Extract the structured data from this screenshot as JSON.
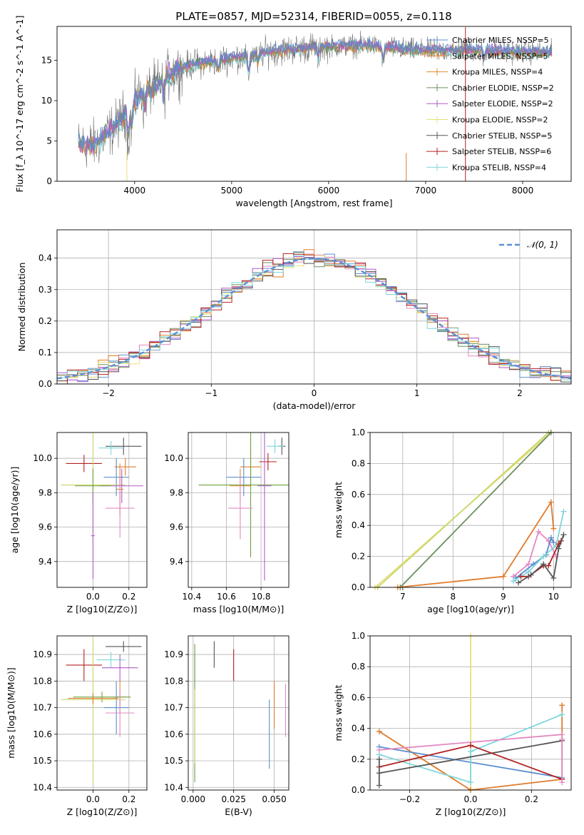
{
  "title": "PLATE=0857, MJD=52314, FIBERID=0055, z=0.118",
  "colors": {
    "chabrier_miles": "#5b8ecf",
    "salpeter_miles": "#e07b2a",
    "kroupa_miles": "#e08a2f",
    "chabrier_elodie": "#6a8f5e",
    "salpeter_elodie": "#b05ac7",
    "kroupa_elodie": "#e6e07a",
    "chabrier_stelib": "#555555",
    "salpeter_stelib": "#b22222",
    "kroupa_stelib": "#7fd6dc",
    "pink": "#e388c2",
    "yellowgreen": "#c9d66a",
    "green": "#6fa040",
    "gauss": "#5a8fd6"
  },
  "chart_data": [
    {
      "type": "line",
      "title": "PLATE=0857, MJD=52314, FIBERID=0055, z=0.118",
      "xlabel": "wavelength [Angstrom, rest frame]",
      "ylabel": "Flux [f_λ 10^-17 erg cm^-2 s^-1 A^-1]",
      "xlim": [
        3200,
        8500
      ],
      "ylim": [
        0,
        19.2
      ],
      "xticks": [
        "4000",
        "5000",
        "6000",
        "7000",
        "8000"
      ],
      "yticks": [
        "0",
        "5",
        "10",
        "15"
      ],
      "legend_position": "top-right",
      "series": [
        {
          "name": "Chabrier MILES, NSSP=5"
        },
        {
          "name": "Salpeter MILES, NSSP=5"
        },
        {
          "name": "Kroupa MILES, NSSP=4"
        },
        {
          "name": "Chabrier ELODIE, NSSP=2"
        },
        {
          "name": "Salpeter ELODIE, NSSP=2"
        },
        {
          "name": "Kroupa ELODIE, NSSP=2"
        },
        {
          "name": "Chabrier STELIB, NSSP=5"
        },
        {
          "name": "Salpeter STELIB, NSSP=6"
        },
        {
          "name": "Kroupa STELIB, NSSP=4"
        }
      ],
      "continuum": {
        "x": [
          3400,
          3600,
          3800,
          3950,
          4050,
          4200,
          4400,
          4600,
          4800,
          5000,
          5200,
          5400,
          5600,
          5800,
          6000,
          6200,
          6400,
          6600,
          6800,
          7000,
          7200,
          7400,
          7600,
          7800,
          8000,
          8200
        ],
        "y": [
          4.5,
          4.6,
          6.8,
          9.2,
          10.6,
          11.6,
          13.6,
          14.5,
          14.9,
          15.3,
          15.6,
          16.1,
          16.3,
          16.6,
          16.7,
          16.8,
          16.9,
          16.6,
          16.3,
          16.2,
          16.2,
          16.3,
          16.2,
          16.1,
          16.0,
          16.0
        ]
      }
    },
    {
      "type": "bar",
      "xlabel": "(data-model)/error",
      "ylabel": "Normed distribution",
      "xlim": [
        -2.5,
        2.5
      ],
      "ylim": [
        0,
        0.49
      ],
      "xticks": [
        "−2",
        "−1",
        "0",
        "1",
        "2"
      ],
      "yticks": [
        "0.0",
        "0.1",
        "0.2",
        "0.3",
        "0.4"
      ],
      "legend": "𝒩(0, 1)",
      "legend_position": "top-right",
      "bin_width": 0.1
    },
    {
      "type": "scatter",
      "xlabel": "Z [log10(Z/Z⊙)]",
      "ylabel": "age  [log10(age/yr)]",
      "xlim": [
        -0.2,
        0.3
      ],
      "ylim": [
        9.25,
        10.15
      ],
      "xticks": [
        "0.0",
        "0.2"
      ],
      "yticks": [
        "9.4",
        "9.6",
        "9.8",
        "10.0"
      ],
      "points": [
        {
          "x": 0.17,
          "y": 10.07,
          "xerr": 0.1,
          "yerr": 0.05,
          "c": "chabrier_stelib"
        },
        {
          "x": 0.1,
          "y": 10.06,
          "xerr": 0.07,
          "yerr": 0.04,
          "c": "kroupa_stelib"
        },
        {
          "x": -0.05,
          "y": 9.97,
          "xerr": 0.1,
          "yerr": 0.05,
          "c": "salpeter_stelib"
        },
        {
          "x": 0.18,
          "y": 9.95,
          "xerr": 0.06,
          "yerr": 0.05,
          "c": "salpeter_miles"
        },
        {
          "x": 0.13,
          "y": 9.89,
          "xerr": 0.07,
          "yerr": 0.11,
          "c": "chabrier_miles"
        },
        {
          "x": 0.0,
          "y": 9.845,
          "xerr": 0.18,
          "yerr": 0.34,
          "c": "yellowgreen"
        },
        {
          "x": 0.16,
          "y": 9.84,
          "xerr": 0.12,
          "yerr": 0.1,
          "c": "salpeter_elodie"
        },
        {
          "x": 0.15,
          "y": 9.82,
          "xerr": 0.02,
          "yerr": 0.15,
          "c": "kroupa_miles"
        },
        {
          "x": 0.0,
          "y": 9.84,
          "xerr": 0.1,
          "yerr": 0.1,
          "c": "green"
        },
        {
          "x": 0.15,
          "y": 9.71,
          "xerr": 0.08,
          "yerr": 0.17,
          "c": "pink"
        },
        {
          "x": 0.0,
          "y": 9.55,
          "xerr": 0.01,
          "yerr": 0.25,
          "c": "salpeter_elodie"
        }
      ]
    },
    {
      "type": "scatter",
      "xlabel": "mass [log10(M/M⊙)]",
      "xlim": [
        10.38,
        10.96
      ],
      "ylim": [
        9.25,
        10.15
      ],
      "xticks": [
        "10.4",
        "10.6",
        "10.8"
      ],
      "yticks": [
        "9.4",
        "9.6",
        "9.8",
        "10.0"
      ],
      "points": [
        {
          "x": 10.92,
          "y": 10.07,
          "xerr": 0.02,
          "yerr": 0.05,
          "c": "chabrier_stelib"
        },
        {
          "x": 10.88,
          "y": 10.07,
          "xerr": 0.05,
          "yerr": 0.04,
          "c": "kroupa_stelib"
        },
        {
          "x": 10.84,
          "y": 9.98,
          "xerr": 0.05,
          "yerr": 0.05,
          "c": "salpeter_stelib"
        },
        {
          "x": 10.74,
          "y": 9.95,
          "xerr": 0.06,
          "yerr": 0.12,
          "c": "salpeter_miles"
        },
        {
          "x": 10.7,
          "y": 9.89,
          "xerr": 0.1,
          "yerr": 0.11,
          "c": "chabrier_miles"
        },
        {
          "x": 10.74,
          "y": 9.845,
          "xerr": 0.3,
          "yerr": 0.42,
          "c": "green"
        },
        {
          "x": 10.82,
          "y": 9.84,
          "xerr": 0.04,
          "yerr": 0.55,
          "c": "salpeter_elodie"
        },
        {
          "x": 10.68,
          "y": 9.84,
          "xerr": 0.06,
          "yerr": 0.1,
          "c": "kroupa_miles"
        },
        {
          "x": 10.68,
          "y": 9.71,
          "xerr": 0.07,
          "yerr": 0.18,
          "c": "pink"
        }
      ]
    },
    {
      "type": "line",
      "xlabel": "age  [log10(age/yr)]",
      "ylabel": "mass weight",
      "xlim": [
        6.35,
        10.35
      ],
      "ylim": [
        0,
        1
      ],
      "xticks": [
        "7",
        "8",
        "9",
        "10"
      ],
      "yticks": [
        "0.0",
        "0.2",
        "0.4",
        "0.6",
        "0.8",
        "1.0"
      ],
      "series": [
        {
          "c": "kroupa_elodie",
          "x": [
            6.45,
            9.95
          ],
          "y": [
            0.0,
            1.0
          ]
        },
        {
          "c": "yellowgreen",
          "x": [
            6.5,
            9.9
          ],
          "y": [
            0.0,
            1.0
          ]
        },
        {
          "c": "chabrier_elodie",
          "x": [
            6.95,
            9.95
          ],
          "y": [
            0.0,
            1.0
          ]
        },
        {
          "c": "salpeter_miles",
          "x": [
            6.9,
            9.0,
            9.95,
            10.0
          ],
          "y": [
            0.0,
            0.07,
            0.55,
            0.38
          ]
        },
        {
          "c": "pink",
          "x": [
            9.2,
            9.5,
            9.7,
            9.9,
            10.05
          ],
          "y": [
            0.07,
            0.15,
            0.36,
            0.3,
            0.2
          ]
        },
        {
          "c": "chabrier_miles",
          "x": [
            9.25,
            9.6,
            9.85,
            9.95,
            10.0
          ],
          "y": [
            0.06,
            0.15,
            0.21,
            0.32,
            0.29
          ]
        },
        {
          "c": "kroupa_stelib",
          "x": [
            9.2,
            9.5,
            9.8,
            10.05,
            10.2
          ],
          "y": [
            0.04,
            0.1,
            0.2,
            0.27,
            0.49
          ]
        },
        {
          "c": "salpeter_stelib",
          "x": [
            9.35,
            9.5,
            9.8,
            9.9,
            10.1,
            10.15
          ],
          "y": [
            0.07,
            0.07,
            0.14,
            0.14,
            0.28,
            0.3
          ]
        },
        {
          "c": "chabrier_stelib",
          "x": [
            9.3,
            9.55,
            9.8,
            10.0,
            10.1,
            10.2
          ],
          "y": [
            0.03,
            0.08,
            0.15,
            0.06,
            0.25,
            0.34
          ]
        }
      ]
    },
    {
      "type": "scatter",
      "xlabel": "Z [log10(Z/Z⊙)]",
      "ylabel": "mass [log10(M/M⊙)]",
      "xlim": [
        -0.2,
        0.3
      ],
      "ylim": [
        10.39,
        10.97
      ],
      "xticks": [
        "0.0",
        "0.2"
      ],
      "yticks": [
        "10.4",
        "10.5",
        "10.6",
        "10.7",
        "10.8",
        "10.9"
      ],
      "points": [
        {
          "x": 0.17,
          "y": 10.93,
          "xerr": 0.1,
          "yerr": 0.02,
          "c": "chabrier_stelib"
        },
        {
          "x": -0.05,
          "y": 10.86,
          "xerr": 0.1,
          "yerr": 0.06,
          "c": "salpeter_stelib"
        },
        {
          "x": 0.1,
          "y": 10.88,
          "xerr": 0.08,
          "yerr": 0.03,
          "c": "kroupa_stelib"
        },
        {
          "x": 0.15,
          "y": 10.85,
          "xerr": 0.1,
          "yerr": 0.05,
          "c": "salpeter_elodie"
        },
        {
          "x": 0.13,
          "y": 10.7,
          "xerr": 0.07,
          "yerr": 0.1,
          "c": "chabrier_miles"
        },
        {
          "x": 0.15,
          "y": 10.74,
          "xerr": 0.03,
          "yerr": 0.06,
          "c": "kroupa_miles"
        },
        {
          "x": 0.05,
          "y": 10.74,
          "xerr": 0.16,
          "yerr": 0.02,
          "c": "green"
        },
        {
          "x": 0.0,
          "y": 10.73,
          "xerr": 0.18,
          "yerr": 0.32,
          "c": "yellowgreen"
        },
        {
          "x": 0.0,
          "y": 10.735,
          "xerr": 0.14,
          "yerr": 0.02,
          "c": "salpeter_miles"
        },
        {
          "x": 0.15,
          "y": 10.68,
          "xerr": 0.08,
          "yerr": 0.09,
          "c": "pink"
        }
      ]
    },
    {
      "type": "scatter",
      "xlabel": "E(B-V)",
      "xlim": [
        -0.003,
        0.059
      ],
      "ylim": [
        10.39,
        10.97
      ],
      "xticks": [
        "0.000",
        "0.025",
        "0.050"
      ],
      "yticks": [
        "10.4",
        "10.5",
        "10.6",
        "10.7",
        "10.8",
        "10.9"
      ],
      "points": [
        {
          "x": 0.013,
          "y": 10.9,
          "yerr": 0.05,
          "c": "chabrier_stelib"
        },
        {
          "x": 0.025,
          "y": 10.86,
          "yerr": 0.06,
          "c": "salpeter_stelib"
        },
        {
          "x": 0.001,
          "y": 10.85,
          "yerr": 0.05,
          "c": "kroupa_stelib"
        },
        {
          "x": 0.001,
          "y": 10.68,
          "yerr": 0.26,
          "c": "green"
        },
        {
          "x": 0.001,
          "y": 10.63,
          "yerr": 0.14,
          "c": "yellowgreen"
        },
        {
          "x": 0.05,
          "y": 10.71,
          "yerr": 0.09,
          "c": "salpeter_miles"
        },
        {
          "x": 0.047,
          "y": 10.6,
          "yerr": 0.13,
          "c": "chabrier_miles"
        },
        {
          "x": 0.057,
          "y": 10.69,
          "yerr": 0.1,
          "c": "pink"
        }
      ]
    },
    {
      "type": "line",
      "xlabel": "Z [log10(Z/Z⊙)]",
      "ylabel": "mass weight",
      "xlim": [
        -0.33,
        0.33
      ],
      "ylim": [
        0,
        1
      ],
      "xticks": [
        "−0.2",
        "0.0",
        "0.2"
      ],
      "yticks": [
        "0.0",
        "0.2",
        "0.4",
        "0.6",
        "0.8",
        "1.0"
      ],
      "series": [
        {
          "c": "kroupa_elodie",
          "x": [
            0.0,
            0.0
          ],
          "y": [
            0.0,
            1.0
          ]
        },
        {
          "c": "salpeter_miles",
          "x": [
            -0.3,
            0.0,
            0.3,
            0.3
          ],
          "y": [
            0.38,
            0.0,
            0.07,
            0.55
          ]
        },
        {
          "c": "chabrier_miles",
          "x": [
            -0.3,
            0.3
          ],
          "y": [
            0.28,
            0.08
          ]
        },
        {
          "c": "kroupa_stelib",
          "x": [
            -0.3,
            0.0,
            0.0,
            0.3
          ],
          "y": [
            0.23,
            0.05,
            0.25,
            0.49
          ]
        },
        {
          "c": "pink",
          "x": [
            -0.3,
            0.3
          ],
          "y": [
            0.26,
            0.36
          ]
        },
        {
          "c": "chabrier_stelib",
          "x": [
            -0.3,
            0.3
          ],
          "y": [
            0.11,
            0.32
          ]
        },
        {
          "c": "salpeter_stelib",
          "x": [
            -0.3,
            0.0,
            0.3
          ],
          "y": [
            0.15,
            0.29,
            0.07
          ]
        },
        {
          "c": "chabrier_stelib",
          "x": [
            -0.3,
            -0.3
          ],
          "y": [
            0.03,
            0.2
          ]
        },
        {
          "c": "pink",
          "x": [
            0.3,
            0.3
          ],
          "y": [
            0.05,
            0.33
          ]
        }
      ]
    }
  ]
}
